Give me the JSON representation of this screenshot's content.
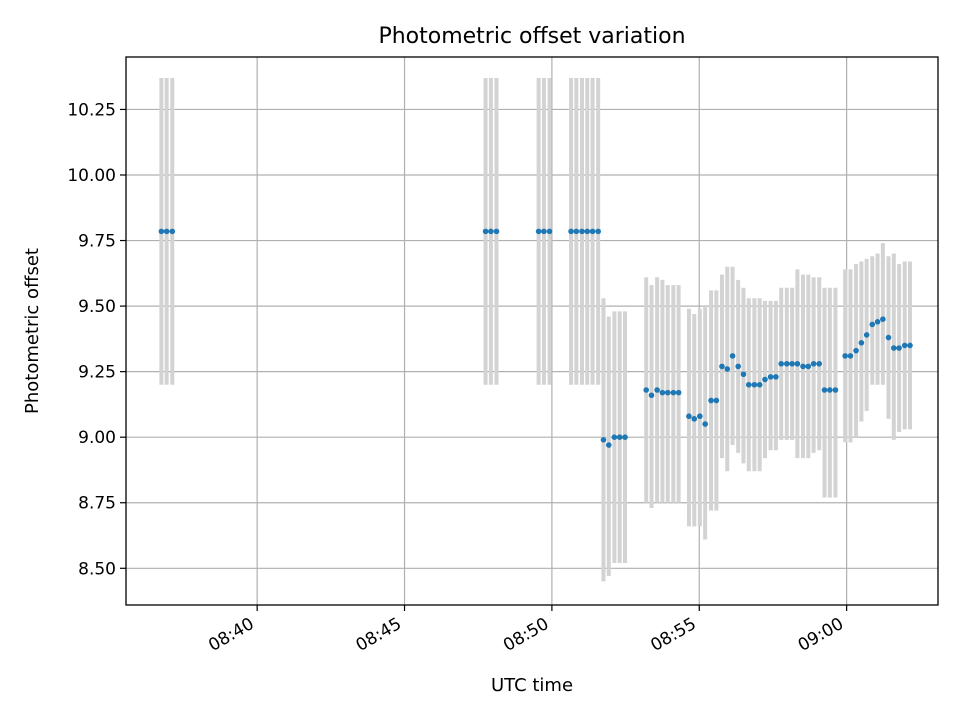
{
  "chart_data": {
    "type": "scatter",
    "title": "Photometric offset variation",
    "xlabel": "UTC time",
    "ylabel": "Photometric offset",
    "x_unit": "minutes",
    "x_tick_minutes": [
      40,
      45,
      50,
      55,
      60
    ],
    "x_tick_labels": [
      "08:40",
      "08:45",
      "08:50",
      "08:55",
      "09:00"
    ],
    "xlim": [
      35.55,
      63.1
    ],
    "y_ticks": [
      8.5,
      8.75,
      9.0,
      9.25,
      9.5,
      9.75,
      10.0,
      10.25
    ],
    "y_tick_labels": [
      "8.50",
      "8.75",
      "9.00",
      "9.25",
      "9.50",
      "9.75",
      "10.00",
      "10.25"
    ],
    "ylim": [
      8.36,
      10.45
    ],
    "grid": true,
    "marker_color": "#1f77b4",
    "errorbar_color": "#d3d3d3",
    "series": [
      {
        "x": [
          36.75,
          36.93,
          37.12,
          47.75,
          47.93,
          48.12,
          49.55,
          49.73,
          49.92,
          50.65,
          50.83,
          51.02,
          51.2,
          51.38,
          51.57,
          51.75,
          51.93,
          52.12,
          52.3,
          52.48,
          53.2,
          53.38,
          53.57,
          53.75,
          53.93,
          54.12,
          54.3,
          54.65,
          54.83,
          55.02,
          55.2,
          55.4,
          55.58,
          55.77,
          55.95,
          56.13,
          56.32,
          56.5,
          56.68,
          56.87,
          57.05,
          57.23,
          57.42,
          57.6,
          57.78,
          57.97,
          58.15,
          58.33,
          58.52,
          58.7,
          58.88,
          59.07,
          59.25,
          59.43,
          59.62,
          59.95,
          60.13,
          60.32,
          60.5,
          60.68,
          60.87,
          61.05,
          61.23,
          61.42,
          61.6,
          61.78,
          61.97,
          62.15
        ],
        "y": [
          9.785,
          9.785,
          9.785,
          9.785,
          9.785,
          9.785,
          9.785,
          9.785,
          9.785,
          9.785,
          9.785,
          9.785,
          9.785,
          9.785,
          9.785,
          8.99,
          8.97,
          9.0,
          9.0,
          9.0,
          9.18,
          9.16,
          9.18,
          9.17,
          9.17,
          9.17,
          9.17,
          9.08,
          9.07,
          9.08,
          9.05,
          9.14,
          9.14,
          9.27,
          9.26,
          9.31,
          9.27,
          9.24,
          9.2,
          9.2,
          9.2,
          9.22,
          9.23,
          9.23,
          9.28,
          9.28,
          9.28,
          9.28,
          9.27,
          9.27,
          9.28,
          9.28,
          9.18,
          9.18,
          9.18,
          9.31,
          9.31,
          9.33,
          9.36,
          9.39,
          9.43,
          9.44,
          9.45,
          9.38,
          9.34,
          9.34,
          9.35,
          9.35
        ],
        "ylow": [
          9.2,
          9.2,
          9.2,
          9.2,
          9.2,
          9.2,
          9.2,
          9.2,
          9.2,
          9.2,
          9.2,
          9.2,
          9.2,
          9.2,
          9.2,
          8.45,
          8.47,
          8.52,
          8.52,
          8.52,
          8.75,
          8.73,
          8.75,
          8.75,
          8.75,
          8.75,
          8.75,
          8.66,
          8.66,
          8.66,
          8.61,
          8.72,
          8.72,
          8.92,
          8.87,
          8.97,
          8.94,
          8.9,
          8.87,
          8.87,
          8.87,
          8.92,
          8.95,
          8.95,
          8.99,
          8.99,
          8.99,
          8.92,
          8.92,
          8.92,
          8.94,
          8.95,
          8.77,
          8.77,
          8.77,
          8.98,
          8.98,
          9.0,
          9.06,
          9.1,
          9.2,
          9.2,
          9.2,
          9.07,
          8.99,
          9.02,
          9.03,
          9.03
        ],
        "yhigh": [
          10.37,
          10.37,
          10.37,
          10.37,
          10.37,
          10.37,
          10.37,
          10.37,
          10.37,
          10.37,
          10.37,
          10.37,
          10.37,
          10.37,
          10.37,
          9.53,
          9.46,
          9.48,
          9.48,
          9.48,
          9.61,
          9.58,
          9.61,
          9.6,
          9.58,
          9.58,
          9.58,
          9.49,
          9.47,
          9.49,
          9.5,
          9.56,
          9.56,
          9.62,
          9.65,
          9.65,
          9.6,
          9.57,
          9.53,
          9.53,
          9.53,
          9.52,
          9.52,
          9.52,
          9.57,
          9.57,
          9.57,
          9.64,
          9.62,
          9.62,
          9.61,
          9.61,
          9.57,
          9.57,
          9.57,
          9.64,
          9.64,
          9.66,
          9.67,
          9.68,
          9.69,
          9.7,
          9.74,
          9.69,
          9.7,
          9.66,
          9.67,
          9.67
        ]
      }
    ]
  }
}
